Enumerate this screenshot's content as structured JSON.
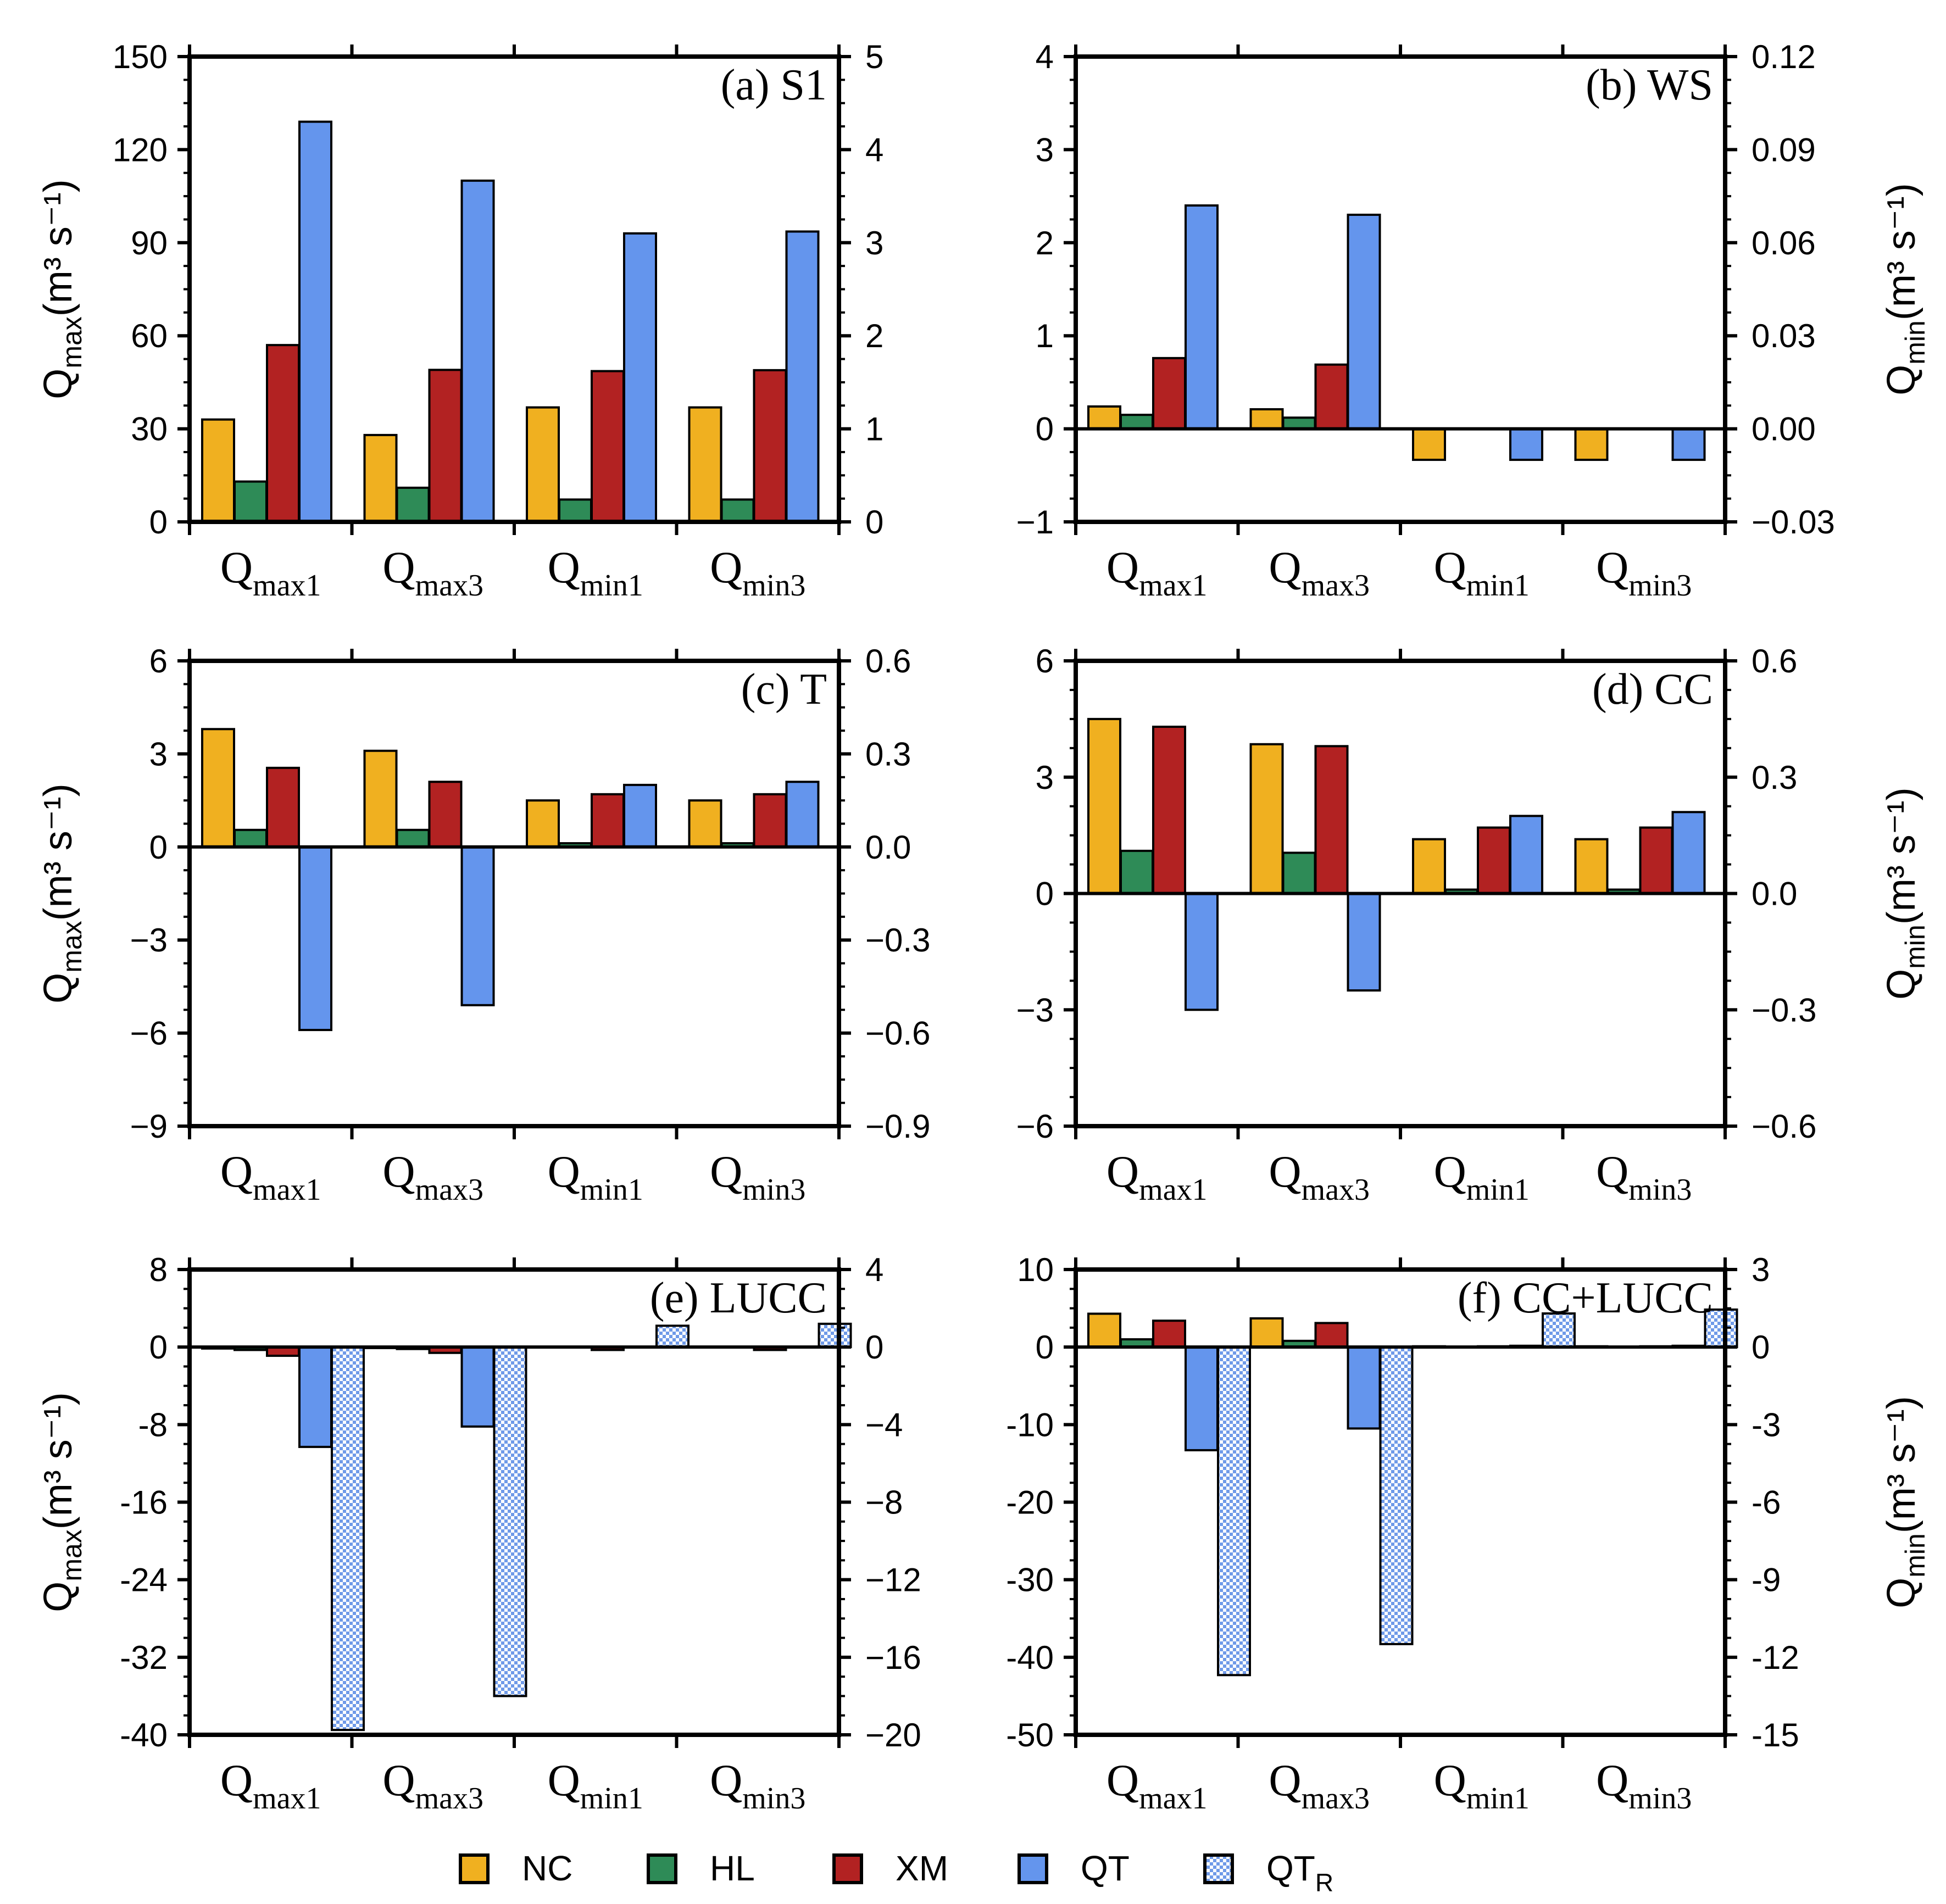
{
  "colors": {
    "NC": "#F0B020",
    "HL": "#2E8B57",
    "XM": "#B22222",
    "QT": "#6495ED",
    "QT_R": "#C9DAF8"
  },
  "legend": [
    {
      "key": "NC",
      "label": "NC"
    },
    {
      "key": "HL",
      "label": "HL"
    },
    {
      "key": "XM",
      "label": "XM"
    },
    {
      "key": "QT",
      "label": "QT"
    },
    {
      "key": "QT_R",
      "label": "QT",
      "sub": "R"
    }
  ],
  "chart_data": [
    {
      "type": "bar",
      "panel": "a",
      "title": "(a) S1",
      "categories": [
        {
          "main": "Q",
          "sub": "max1"
        },
        {
          "main": "Q",
          "sub": "max3"
        },
        {
          "main": "Q",
          "sub": "min1"
        },
        {
          "main": "Q",
          "sub": "min3"
        }
      ],
      "left_axis": {
        "label": "Q",
        "sub": "max",
        "unit": "(m³ s⁻¹)",
        "ylim": [
          0,
          150
        ],
        "ticks": [
          "150",
          "120",
          "90",
          "60",
          "30",
          "0"
        ],
        "tick_values": [
          150,
          120,
          90,
          60,
          30,
          0
        ]
      },
      "right_axis": {
        "label": "",
        "sub": "",
        "unit": "",
        "ylim": [
          0,
          5
        ],
        "ticks": [
          "5",
          "4",
          "3",
          "2",
          "1",
          "0"
        ],
        "tick_values": [
          5,
          4,
          3,
          2,
          1,
          0
        ]
      },
      "series": [
        {
          "name": "NC",
          "values": [
            33,
            28,
            1.23,
            1.23
          ]
        },
        {
          "name": "HL",
          "values": [
            13,
            11,
            0.24,
            0.24
          ]
        },
        {
          "name": "XM",
          "values": [
            57,
            49,
            1.62,
            1.63
          ]
        },
        {
          "name": "QT",
          "values": [
            129,
            110,
            3.1,
            3.12
          ]
        }
      ],
      "zero_line": false
    },
    {
      "type": "bar",
      "panel": "b",
      "title": "(b) WS",
      "categories": [
        {
          "main": "Q",
          "sub": "max1"
        },
        {
          "main": "Q",
          "sub": "max3"
        },
        {
          "main": "Q",
          "sub": "min1"
        },
        {
          "main": "Q",
          "sub": "min3"
        }
      ],
      "left_axis": {
        "label": "",
        "sub": "",
        "unit": "",
        "ylim": [
          -1,
          4
        ],
        "ticks": [
          "4",
          "3",
          "2",
          "1",
          "0",
          "−1"
        ],
        "tick_values": [
          4,
          3,
          2,
          1,
          0,
          -1
        ]
      },
      "right_axis": {
        "label": "Q",
        "sub": "min",
        "unit": "(m³ s⁻¹)",
        "ylim": [
          -0.03,
          0.12
        ],
        "ticks": [
          "0.12",
          "0.09",
          "0.06",
          "0.03",
          "0.00",
          "−0.03"
        ],
        "tick_values": [
          0.12,
          0.09,
          0.06,
          0.03,
          0,
          -0.03
        ]
      },
      "series": [
        {
          "name": "NC",
          "values": [
            0.24,
            0.21,
            -0.01,
            -0.01
          ]
        },
        {
          "name": "HL",
          "values": [
            0.15,
            0.12,
            0,
            0
          ]
        },
        {
          "name": "XM",
          "values": [
            0.76,
            0.69,
            0,
            0
          ]
        },
        {
          "name": "QT",
          "values": [
            2.4,
            2.3,
            -0.01,
            -0.01
          ]
        }
      ],
      "zero_line": true
    },
    {
      "type": "bar",
      "panel": "c",
      "title": "(c) T",
      "categories": [
        {
          "main": "Q",
          "sub": "max1"
        },
        {
          "main": "Q",
          "sub": "max3"
        },
        {
          "main": "Q",
          "sub": "min1"
        },
        {
          "main": "Q",
          "sub": "min3"
        }
      ],
      "left_axis": {
        "label": "Q",
        "sub": "max",
        "unit": "(m³ s⁻¹)",
        "ylim": [
          -9,
          6
        ],
        "ticks": [
          "6",
          "3",
          "0",
          "−3",
          "−6",
          "−9"
        ],
        "tick_values": [
          6,
          3,
          0,
          -3,
          -6,
          -9
        ]
      },
      "right_axis": {
        "label": "",
        "sub": "",
        "unit": "",
        "ylim": [
          -0.9,
          0.6
        ],
        "ticks": [
          "0.6",
          "0.3",
          "0.0",
          "−0.3",
          "−0.6",
          "−0.9"
        ],
        "tick_values": [
          0.6,
          0.3,
          0,
          -0.3,
          -0.6,
          -0.9
        ]
      },
      "series": [
        {
          "name": "NC",
          "values": [
            3.8,
            3.1,
            0.15,
            0.15
          ]
        },
        {
          "name": "HL",
          "values": [
            0.55,
            0.55,
            0.012,
            0.012
          ]
        },
        {
          "name": "XM",
          "values": [
            2.55,
            2.1,
            0.17,
            0.17
          ]
        },
        {
          "name": "QT",
          "values": [
            -5.9,
            -5.1,
            0.2,
            0.21
          ]
        }
      ],
      "zero_line": true
    },
    {
      "type": "bar",
      "panel": "d",
      "title": "(d) CC",
      "categories": [
        {
          "main": "Q",
          "sub": "max1"
        },
        {
          "main": "Q",
          "sub": "max3"
        },
        {
          "main": "Q",
          "sub": "min1"
        },
        {
          "main": "Q",
          "sub": "min3"
        }
      ],
      "left_axis": {
        "label": "",
        "sub": "",
        "unit": "",
        "ylim": [
          -6,
          6
        ],
        "ticks": [
          "6",
          "3",
          "0",
          "−3",
          "−6"
        ],
        "tick_values": [
          6,
          3,
          0,
          -3,
          -6
        ]
      },
      "right_axis": {
        "label": "Q",
        "sub": "min",
        "unit": "(m³ s⁻¹)",
        "ylim": [
          -0.6,
          0.6
        ],
        "ticks": [
          "0.6",
          "0.3",
          "0.0",
          "−0.3",
          "−0.6"
        ],
        "tick_values": [
          0.6,
          0.3,
          0,
          -0.3,
          -0.6
        ]
      },
      "series": [
        {
          "name": "NC",
          "values": [
            4.5,
            3.85,
            0.14,
            0.14
          ]
        },
        {
          "name": "HL",
          "values": [
            1.1,
            1.05,
            0.01,
            0.01
          ]
        },
        {
          "name": "XM",
          "values": [
            4.3,
            3.8,
            0.17,
            0.17
          ]
        },
        {
          "name": "QT",
          "values": [
            -3.0,
            -2.5,
            0.2,
            0.21
          ]
        }
      ],
      "zero_line": true
    },
    {
      "type": "bar",
      "panel": "e",
      "title": "(e) LUCC",
      "categories": [
        {
          "main": "Q",
          "sub": "max1"
        },
        {
          "main": "Q",
          "sub": "max3"
        },
        {
          "main": "Q",
          "sub": "min1"
        },
        {
          "main": "Q",
          "sub": "min3"
        }
      ],
      "left_axis": {
        "label": "Q",
        "sub": "max",
        "unit": "(m³ s⁻¹)",
        "ylim": [
          -40,
          8
        ],
        "ticks": [
          "8",
          "0",
          "-8",
          "-16",
          "-24",
          "-32",
          "-40"
        ],
        "tick_values": [
          8,
          0,
          -8,
          -16,
          -24,
          -32,
          -40
        ]
      },
      "right_axis": {
        "label": "",
        "sub": "",
        "unit": "",
        "ylim": [
          -20,
          4
        ],
        "ticks": [
          "4",
          "0",
          "−4",
          "−8",
          "−12",
          "−16",
          "−20"
        ],
        "tick_values": [
          4,
          0,
          -4,
          -8,
          -12,
          -16,
          -20
        ]
      },
      "series": [
        {
          "name": "NC",
          "values": [
            -0.15,
            -0.1,
            0,
            0
          ]
        },
        {
          "name": "HL",
          "values": [
            -0.3,
            -0.2,
            0,
            0
          ]
        },
        {
          "name": "XM",
          "values": [
            -0.9,
            -0.6,
            -0.15,
            -0.15
          ]
        },
        {
          "name": "QT",
          "values": [
            -10.3,
            -8.2,
            0,
            0
          ]
        },
        {
          "name": "QT_R",
          "values": [
            -39.5,
            -36.0,
            1.1,
            1.2
          ]
        }
      ],
      "zero_line": true
    },
    {
      "type": "bar",
      "panel": "f",
      "title": "(f) CC+LUCC",
      "categories": [
        {
          "main": "Q",
          "sub": "max1"
        },
        {
          "main": "Q",
          "sub": "max3"
        },
        {
          "main": "Q",
          "sub": "min1"
        },
        {
          "main": "Q",
          "sub": "min3"
        }
      ],
      "left_axis": {
        "label": "",
        "sub": "",
        "unit": "",
        "ylim": [
          -50,
          10
        ],
        "ticks": [
          "10",
          "0",
          "-10",
          "-20",
          "-30",
          "-40",
          "-50"
        ],
        "tick_values": [
          10,
          0,
          -10,
          -20,
          -30,
          -40,
          -50
        ]
      },
      "right_axis": {
        "label": "Q",
        "sub": "min",
        "unit": "(m³ s⁻¹)",
        "ylim": [
          -15,
          3
        ],
        "ticks": [
          "3",
          "0",
          "-3",
          "-6",
          "-9",
          "-12",
          "-15"
        ],
        "tick_values": [
          3,
          0,
          -3,
          -6,
          -9,
          -12,
          -15
        ]
      },
      "series": [
        {
          "name": "NC",
          "values": [
            4.3,
            3.7,
            0.03,
            0.03
          ]
        },
        {
          "name": "HL",
          "values": [
            1.0,
            0.8,
            0.01,
            0.01
          ]
        },
        {
          "name": "XM",
          "values": [
            3.4,
            3.1,
            0.03,
            0.03
          ]
        },
        {
          "name": "QT",
          "values": [
            -13.3,
            -10.5,
            0.05,
            0.05
          ]
        },
        {
          "name": "QT_R",
          "values": [
            -42.3,
            -38.3,
            1.3,
            1.45
          ]
        }
      ],
      "zero_line": true
    }
  ]
}
